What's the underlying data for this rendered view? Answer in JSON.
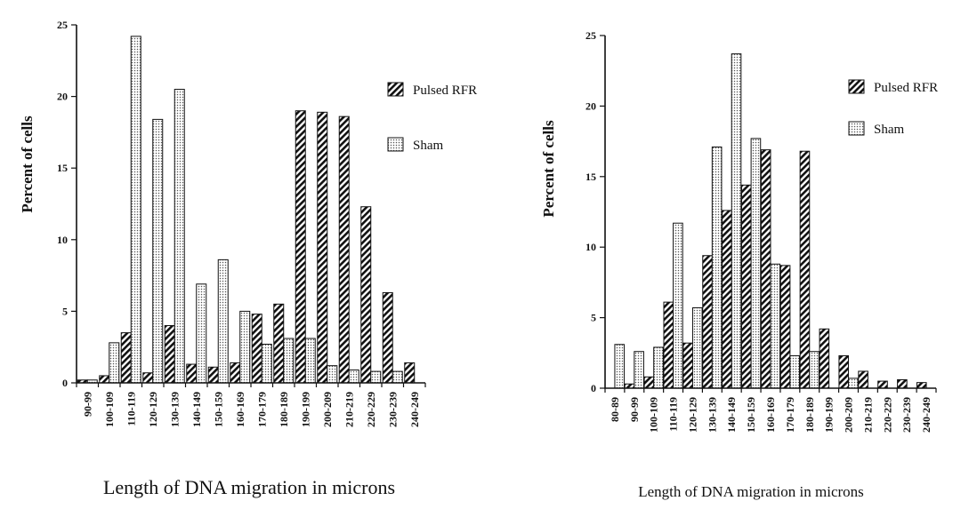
{
  "colors": {
    "ink": "#111111",
    "background": "#ffffff"
  },
  "chart_data": [
    {
      "type": "bar",
      "xlabel": "Length of DNA migration in microns",
      "ylabel": "Percent of cells",
      "ylim": [
        0,
        25
      ],
      "yticks": [
        0,
        5,
        10,
        15,
        20,
        25
      ],
      "legend_position": "right",
      "categories": [
        "90-99",
        "100-109",
        "110-119",
        "120-129",
        "130-139",
        "140-149",
        "150-159",
        "160-169",
        "170-179",
        "180-189",
        "190-199",
        "200-209",
        "210-219",
        "220-229",
        "230-239",
        "240-249"
      ],
      "series": [
        {
          "name": "Pulsed RFR",
          "pattern": "hatch",
          "values": [
            0.2,
            0.5,
            3.5,
            0.7,
            4.0,
            1.3,
            1.1,
            1.4,
            4.8,
            5.5,
            19.0,
            18.9,
            18.6,
            12.3,
            6.3,
            1.4
          ]
        },
        {
          "name": "Sham",
          "pattern": "dots",
          "values": [
            0.2,
            2.8,
            24.2,
            18.4,
            20.5,
            6.9,
            8.6,
            5.0,
            2.7,
            3.1,
            3.1,
            1.2,
            0.9,
            0.8,
            0.8,
            0.0
          ]
        }
      ]
    },
    {
      "type": "bar",
      "xlabel": "Length of DNA migration in microns",
      "ylabel": "Percent of cells",
      "ylim": [
        0,
        25
      ],
      "yticks": [
        0,
        5,
        10,
        15,
        20,
        25
      ],
      "legend_position": "right",
      "categories": [
        "80-89",
        "90-99",
        "100-109",
        "110-119",
        "120-129",
        "130-139",
        "140-149",
        "150-159",
        "160-169",
        "170-179",
        "180-189",
        "190-199",
        "200-209",
        "210-219",
        "220-229",
        "230-239",
        "240-249"
      ],
      "series": [
        {
          "name": "Pulsed RFR",
          "pattern": "hatch",
          "values": [
            0.0,
            0.3,
            0.8,
            6.1,
            3.2,
            9.4,
            12.6,
            14.4,
            16.9,
            8.7,
            16.8,
            4.2,
            2.3,
            1.2,
            0.5,
            0.6,
            0.4
          ]
        },
        {
          "name": "Sham",
          "pattern": "dots",
          "values": [
            3.1,
            2.6,
            2.9,
            11.7,
            5.7,
            17.1,
            23.7,
            17.7,
            8.8,
            2.3,
            2.6,
            0.0,
            0.7,
            0.0,
            0.0,
            0.0,
            0.0
          ]
        }
      ]
    }
  ]
}
